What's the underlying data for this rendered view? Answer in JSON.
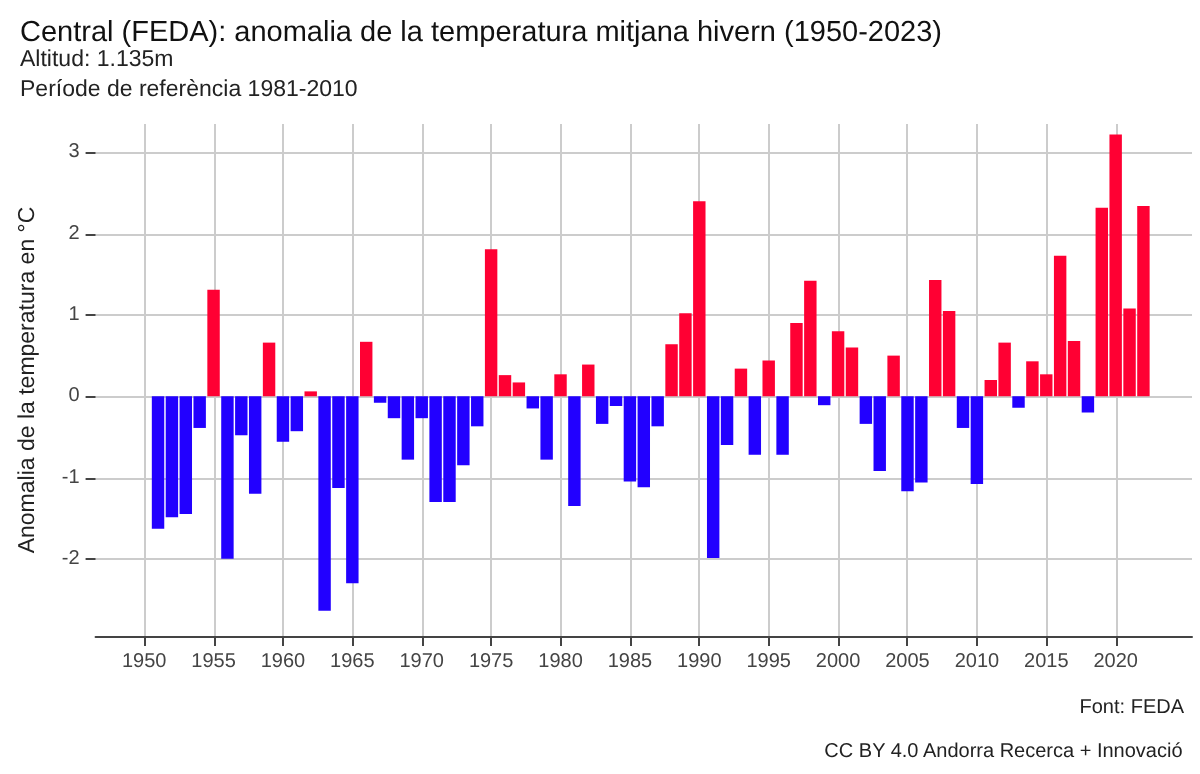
{
  "chart_data": {
    "type": "bar",
    "title": "Central (FEDA): anomalia de la temperatura mitjana hivern (1950-2023)",
    "subtitle": "Altitud: 1.135m\nPeríode de referència 1981-2010",
    "ylabel": "Anomalia de la temperatura en °C",
    "x": [
      1951,
      1952,
      1953,
      1954,
      1955,
      1956,
      1957,
      1958,
      1959,
      1960,
      1961,
      1962,
      1963,
      1964,
      1965,
      1966,
      1967,
      1968,
      1969,
      1970,
      1971,
      1972,
      1973,
      1974,
      1975,
      1976,
      1977,
      1978,
      1979,
      1980,
      1981,
      1982,
      1983,
      1984,
      1985,
      1986,
      1987,
      1988,
      1989,
      1990,
      1991,
      1992,
      1993,
      1994,
      1995,
      1996,
      1997,
      1998,
      1999,
      2000,
      2001,
      2002,
      2003,
      2004,
      2005,
      2006,
      2007,
      2008,
      2009,
      2010,
      2011,
      2012,
      2013,
      2014,
      2015,
      2016,
      2017,
      2018,
      2019,
      2020,
      2021,
      2022
    ],
    "values": [
      -1.63,
      -1.49,
      -1.45,
      -0.39,
      1.31,
      -2.0,
      -0.48,
      -1.2,
      0.66,
      -0.56,
      -0.43,
      0.06,
      -2.64,
      -1.13,
      -2.3,
      0.67,
      -0.08,
      -0.27,
      -0.78,
      -0.27,
      -1.3,
      -1.3,
      -0.85,
      -0.37,
      1.81,
      0.26,
      0.17,
      -0.15,
      -0.78,
      0.27,
      -1.35,
      0.39,
      -0.34,
      -0.12,
      -1.05,
      -1.12,
      -0.37,
      0.64,
      1.02,
      2.4,
      -1.99,
      -0.6,
      0.34,
      -0.72,
      0.44,
      -0.72,
      0.9,
      1.42,
      -0.11,
      0.8,
      0.6,
      -0.34,
      -0.92,
      0.5,
      -1.17,
      -1.06,
      1.43,
      1.05,
      -0.39,
      -1.08,
      0.2,
      0.66,
      -0.14,
      0.43,
      0.27,
      1.73,
      0.68,
      -0.2,
      2.32,
      3.22,
      1.08,
      2.34
    ],
    "colors": [
      "#2200ff",
      "#2200ff",
      "#2200ff",
      "#2200ff",
      "#ff0033",
      "#2200ff",
      "#2200ff",
      "#2200ff",
      "#ff0033",
      "#2200ff",
      "#2200ff",
      "#ff0033",
      "#2200ff",
      "#2200ff",
      "#2200ff",
      "#ff0033",
      "#2200ff",
      "#2200ff",
      "#2200ff",
      "#2200ff",
      "#2200ff",
      "#2200ff",
      "#2200ff",
      "#2200ff",
      "#ff0033",
      "#ff0033",
      "#ff0033",
      "#2200ff",
      "#2200ff",
      "#ff0033",
      "#2200ff",
      "#ff0033",
      "#2200ff",
      "#2200ff",
      "#2200ff",
      "#2200ff",
      "#2200ff",
      "#ff0033",
      "#ff0033",
      "#ff0033",
      "#2200ff",
      "#2200ff",
      "#ff0033",
      "#2200ff",
      "#ff0033",
      "#2200ff",
      "#ff0033",
      "#ff0033",
      "#2200ff",
      "#ff0033",
      "#ff0033",
      "#2200ff",
      "#2200ff",
      "#ff0033",
      "#2200ff",
      "#2200ff",
      "#ff0033",
      "#ff0033",
      "#2200ff",
      "#2200ff",
      "#ff0033",
      "#ff0033",
      "#2200ff",
      "#ff0033",
      "#ff0033",
      "#ff0033",
      "#ff0033",
      "#2200ff",
      "#ff0033",
      "#ff0033",
      "#ff0033",
      "#ff0033"
    ],
    "xlim": [
      1946.5,
      2025.5
    ],
    "xticks": [
      1950,
      1955,
      1960,
      1965,
      1970,
      1975,
      1980,
      1985,
      1990,
      1995,
      2000,
      2005,
      2010,
      2015,
      2020
    ],
    "ylim": [
      -2.95,
      3.35
    ],
    "yticks": [
      -2,
      -1,
      0,
      1,
      2,
      3
    ],
    "grid": true,
    "annotations": [
      "Font: FEDA",
      "CC BY 4.0 Andorra Recerca + Innovació"
    ]
  }
}
